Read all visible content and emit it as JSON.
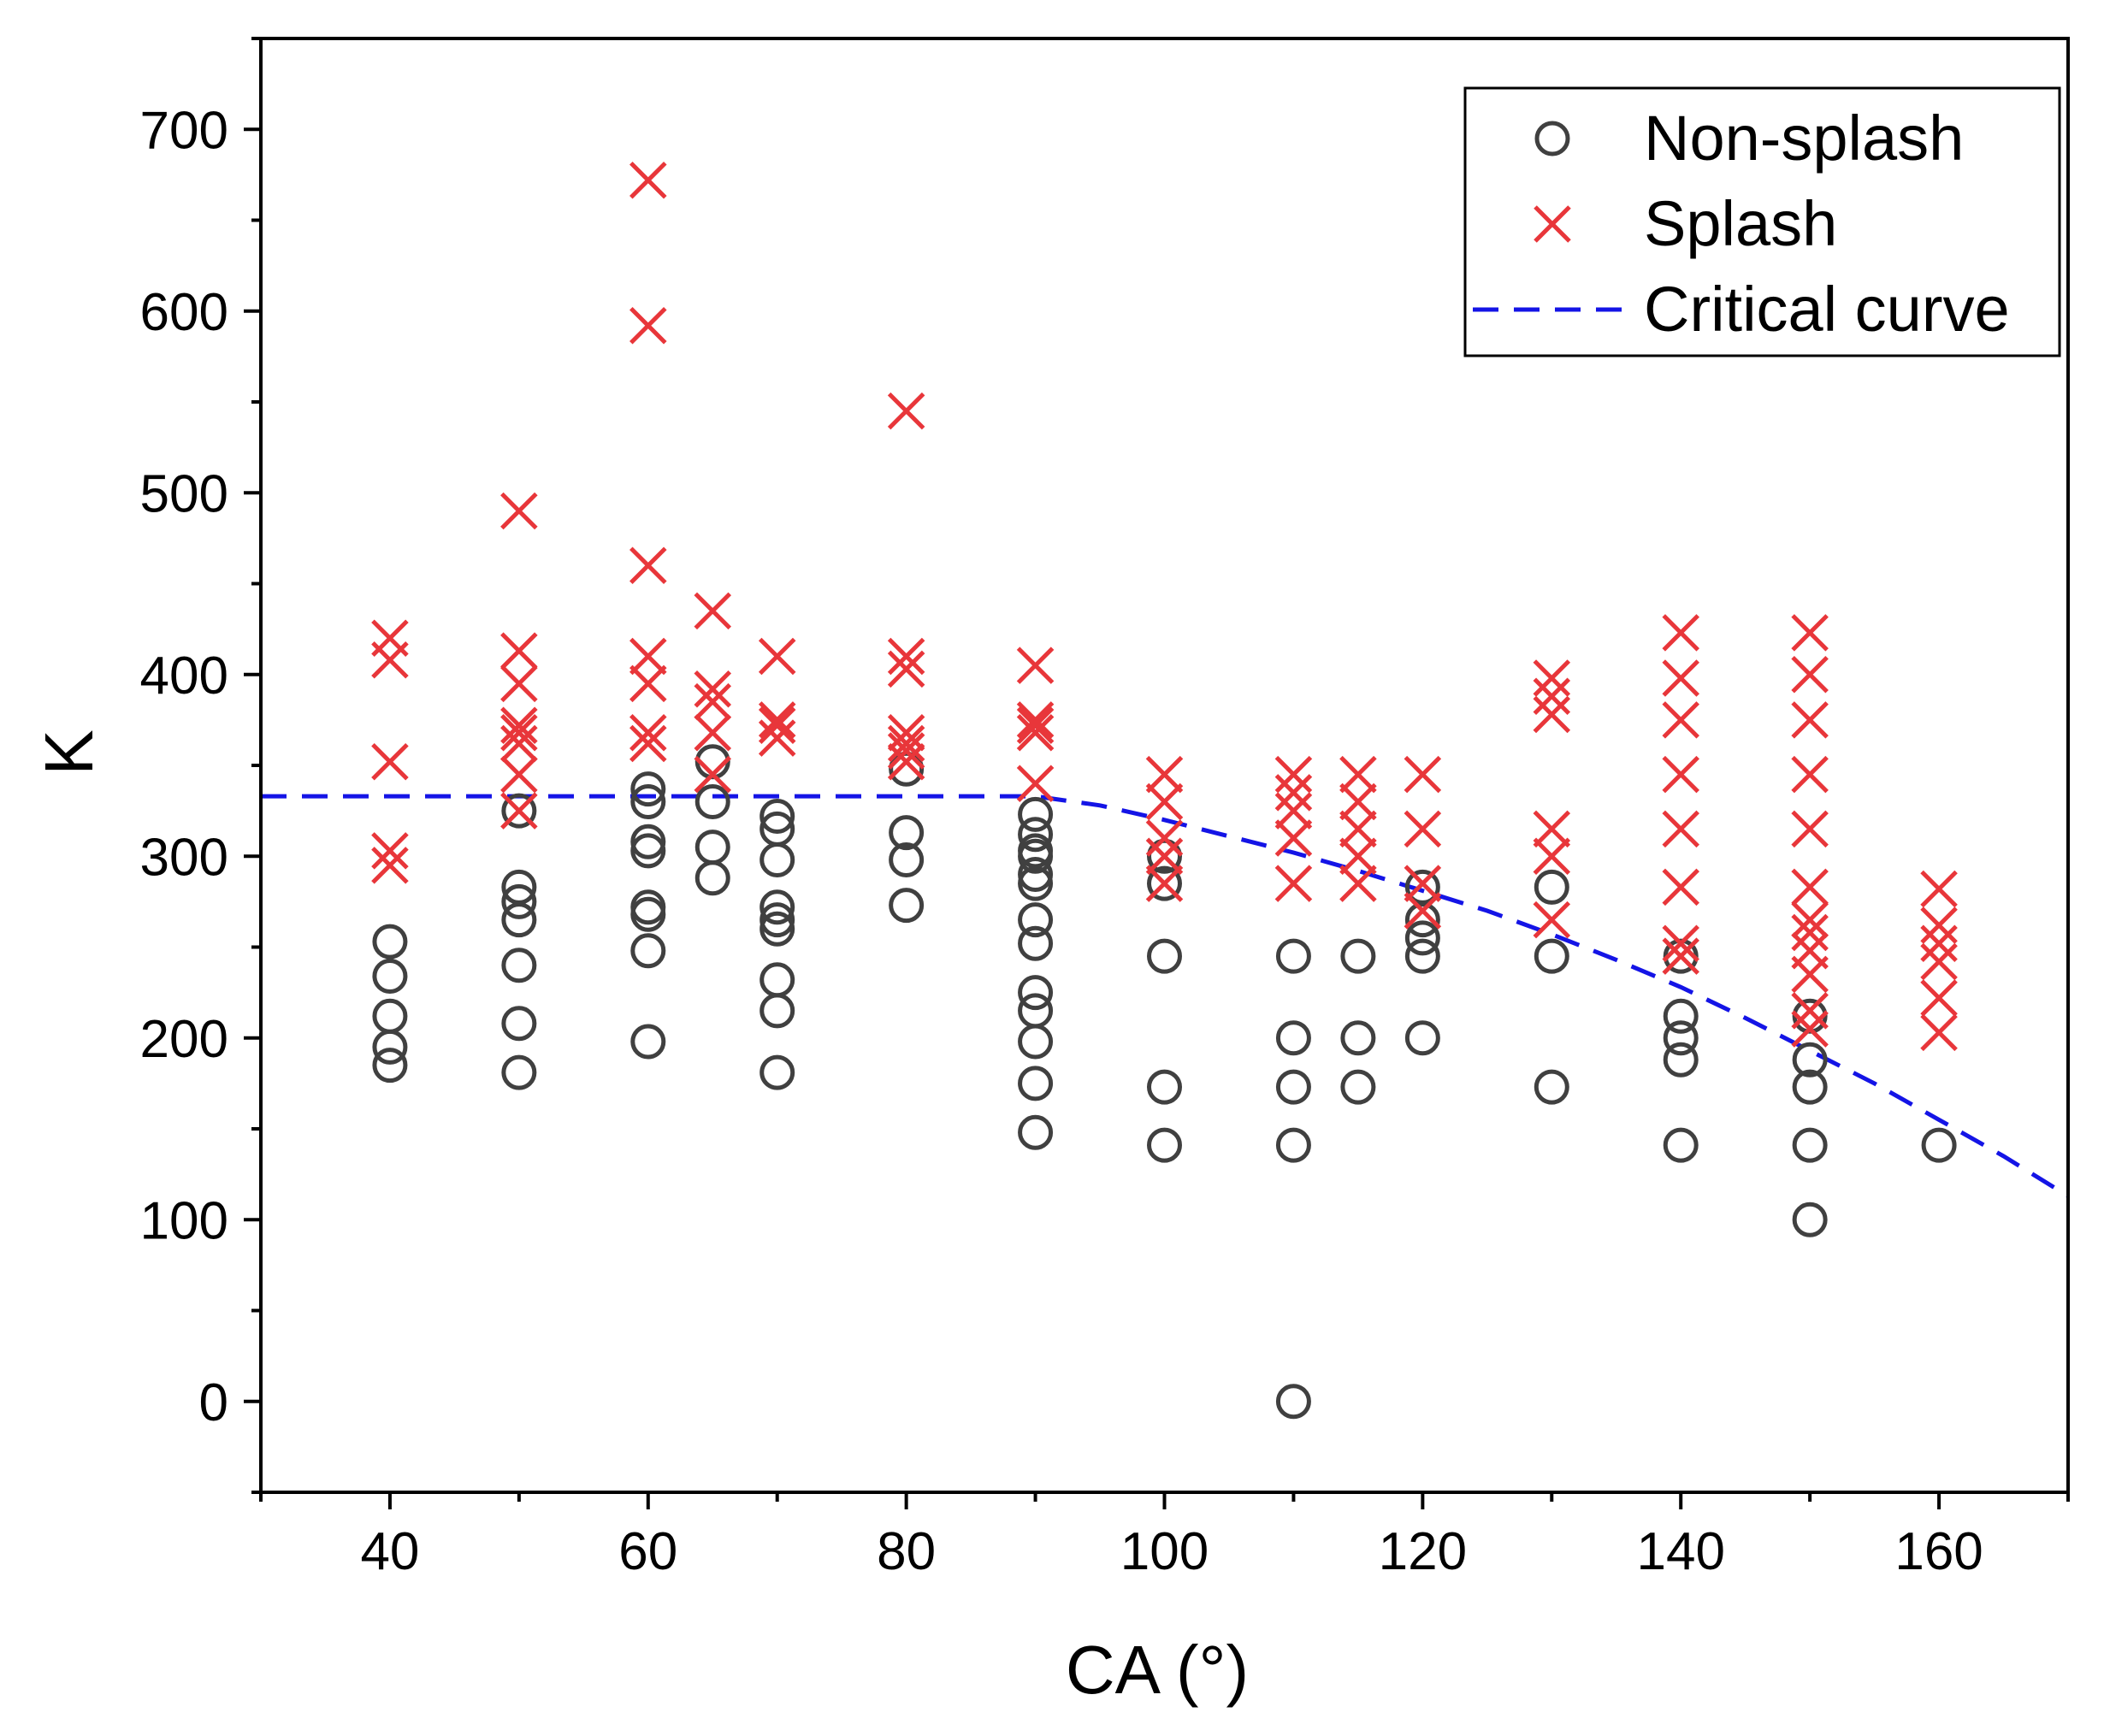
{
  "chart_data": {
    "type": "scatter",
    "title": "",
    "xlabel": "CA (°)",
    "ylabel": "K",
    "xlim": [
      30,
      170
    ],
    "ylim": [
      -50,
      750
    ],
    "xticks": [
      40,
      60,
      80,
      100,
      120,
      140,
      160
    ],
    "yticks": [
      0,
      100,
      200,
      300,
      400,
      500,
      600,
      700
    ],
    "grid": false,
    "legend_position": "top-right",
    "series": [
      {
        "name": "Non-splash",
        "marker": "circle",
        "color": "#404040",
        "points": [
          [
            40,
            185
          ],
          [
            40,
            195
          ],
          [
            40,
            212
          ],
          [
            40,
            234
          ],
          [
            40,
            253
          ],
          [
            50,
            181
          ],
          [
            50,
            208
          ],
          [
            50,
            240
          ],
          [
            50,
            265
          ],
          [
            50,
            275
          ],
          [
            50,
            283
          ],
          [
            50,
            325
          ],
          [
            60,
            198
          ],
          [
            60,
            248
          ],
          [
            60,
            268
          ],
          [
            60,
            272
          ],
          [
            60,
            303
          ],
          [
            60,
            308
          ],
          [
            60,
            330
          ],
          [
            60,
            337
          ],
          [
            65,
            288
          ],
          [
            65,
            305
          ],
          [
            65,
            330
          ],
          [
            65,
            352
          ],
          [
            70,
            181
          ],
          [
            70,
            215
          ],
          [
            70,
            232
          ],
          [
            70,
            260
          ],
          [
            70,
            265
          ],
          [
            70,
            272
          ],
          [
            70,
            298
          ],
          [
            70,
            315
          ],
          [
            70,
            322
          ],
          [
            80,
            273
          ],
          [
            80,
            298
          ],
          [
            80,
            313
          ],
          [
            80,
            348
          ],
          [
            90,
            148
          ],
          [
            90,
            175
          ],
          [
            90,
            198
          ],
          [
            90,
            215
          ],
          [
            90,
            225
          ],
          [
            90,
            252
          ],
          [
            90,
            265
          ],
          [
            90,
            285
          ],
          [
            90,
            290
          ],
          [
            90,
            300
          ],
          [
            90,
            303
          ],
          [
            90,
            312
          ],
          [
            90,
            323
          ],
          [
            100,
            141
          ],
          [
            100,
            173
          ],
          [
            100,
            245
          ],
          [
            100,
            285
          ],
          [
            100,
            300
          ],
          [
            110,
            0
          ],
          [
            110,
            141
          ],
          [
            110,
            173
          ],
          [
            110,
            200
          ],
          [
            110,
            245
          ],
          [
            115,
            173
          ],
          [
            115,
            200
          ],
          [
            115,
            245
          ],
          [
            120,
            200
          ],
          [
            120,
            245
          ],
          [
            120,
            255
          ],
          [
            120,
            265
          ],
          [
            120,
            283
          ],
          [
            130,
            173
          ],
          [
            130,
            245
          ],
          [
            130,
            283
          ],
          [
            140,
            141
          ],
          [
            140,
            188
          ],
          [
            140,
            200
          ],
          [
            140,
            212
          ],
          [
            140,
            245
          ],
          [
            150,
            100
          ],
          [
            150,
            141
          ],
          [
            150,
            173
          ],
          [
            150,
            188
          ],
          [
            150,
            212
          ],
          [
            160,
            141
          ]
        ]
      },
      {
        "name": "Splash",
        "marker": "cross",
        "color": "#e8363a",
        "points": [
          [
            40,
            295
          ],
          [
            40,
            303
          ],
          [
            40,
            352
          ],
          [
            40,
            408
          ],
          [
            40,
            420
          ],
          [
            50,
            325
          ],
          [
            50,
            345
          ],
          [
            50,
            362
          ],
          [
            50,
            368
          ],
          [
            50,
            372
          ],
          [
            50,
            395
          ],
          [
            50,
            413
          ],
          [
            50,
            490
          ],
          [
            60,
            362
          ],
          [
            60,
            368
          ],
          [
            60,
            395
          ],
          [
            60,
            410
          ],
          [
            60,
            460
          ],
          [
            60,
            592
          ],
          [
            60,
            672
          ],
          [
            65,
            345
          ],
          [
            65,
            368
          ],
          [
            65,
            385
          ],
          [
            65,
            392
          ],
          [
            65,
            435
          ],
          [
            70,
            365
          ],
          [
            70,
            372
          ],
          [
            70,
            375
          ],
          [
            70,
            410
          ],
          [
            80,
            352
          ],
          [
            80,
            358
          ],
          [
            80,
            362
          ],
          [
            80,
            368
          ],
          [
            80,
            403
          ],
          [
            80,
            410
          ],
          [
            80,
            545
          ],
          [
            90,
            340
          ],
          [
            90,
            368
          ],
          [
            90,
            372
          ],
          [
            90,
            375
          ],
          [
            90,
            405
          ],
          [
            100,
            285
          ],
          [
            100,
            300
          ],
          [
            100,
            310
          ],
          [
            100,
            330
          ],
          [
            100,
            345
          ],
          [
            110,
            285
          ],
          [
            110,
            310
          ],
          [
            110,
            325
          ],
          [
            110,
            335
          ],
          [
            110,
            345
          ],
          [
            115,
            285
          ],
          [
            115,
            300
          ],
          [
            115,
            315
          ],
          [
            115,
            330
          ],
          [
            115,
            345
          ],
          [
            120,
            270
          ],
          [
            120,
            285
          ],
          [
            120,
            315
          ],
          [
            120,
            345
          ],
          [
            130,
            265
          ],
          [
            130,
            300
          ],
          [
            130,
            315
          ],
          [
            130,
            378
          ],
          [
            130,
            388
          ],
          [
            130,
            398
          ],
          [
            140,
            245
          ],
          [
            140,
            252
          ],
          [
            140,
            283
          ],
          [
            140,
            315
          ],
          [
            140,
            345
          ],
          [
            140,
            375
          ],
          [
            140,
            398
          ],
          [
            140,
            423
          ],
          [
            150,
            205
          ],
          [
            150,
            215
          ],
          [
            150,
            235
          ],
          [
            150,
            248
          ],
          [
            150,
            258
          ],
          [
            150,
            265
          ],
          [
            150,
            283
          ],
          [
            150,
            315
          ],
          [
            150,
            345
          ],
          [
            150,
            375
          ],
          [
            150,
            400
          ],
          [
            150,
            423
          ],
          [
            160,
            203
          ],
          [
            160,
            222
          ],
          [
            160,
            242
          ],
          [
            160,
            252
          ],
          [
            160,
            262
          ],
          [
            160,
            282
          ]
        ]
      },
      {
        "name": "Critical curve",
        "marker": "dashed-line",
        "color": "#1414e6",
        "points": [
          [
            30,
            333
          ],
          [
            40,
            333
          ],
          [
            50,
            333
          ],
          [
            60,
            333
          ],
          [
            70,
            333
          ],
          [
            80,
            333
          ],
          [
            90,
            333
          ],
          [
            95,
            328
          ],
          [
            100,
            320
          ],
          [
            105,
            311
          ],
          [
            110,
            302
          ],
          [
            115,
            292
          ],
          [
            120,
            281
          ],
          [
            125,
            270
          ],
          [
            130,
            257
          ],
          [
            135,
            243
          ],
          [
            140,
            228
          ],
          [
            145,
            211
          ],
          [
            150,
            193
          ],
          [
            155,
            175
          ],
          [
            160,
            155
          ],
          [
            165,
            135
          ],
          [
            170,
            113
          ]
        ]
      }
    ]
  }
}
